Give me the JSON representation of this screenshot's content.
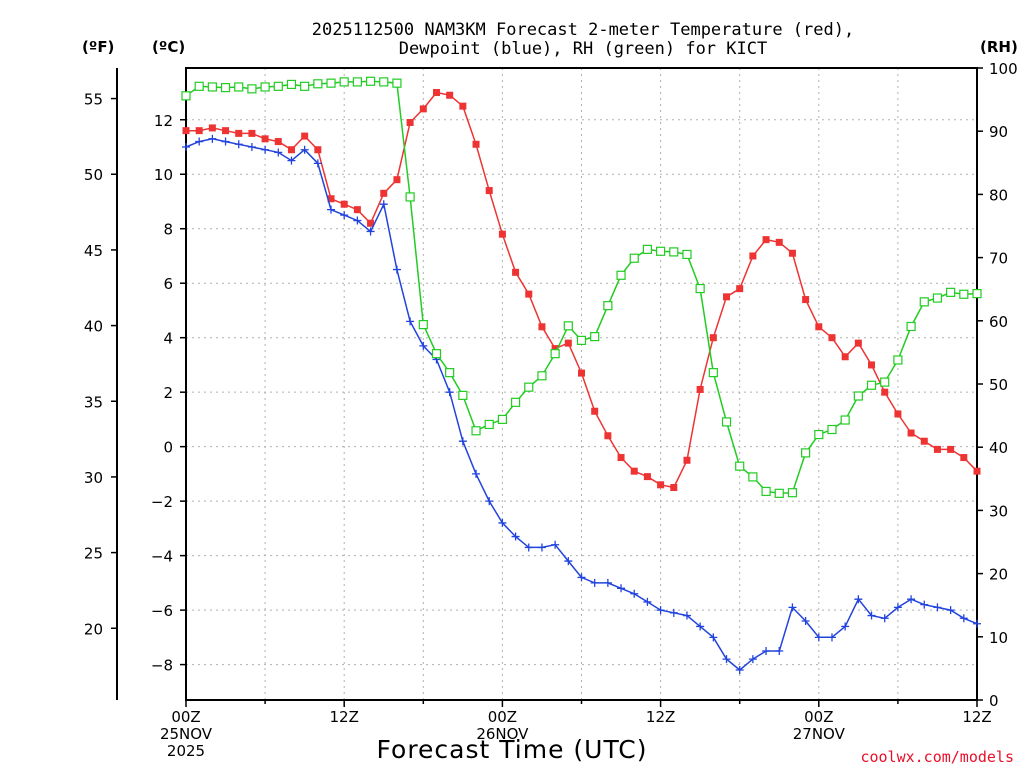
{
  "chart_data": {
    "type": "line",
    "title_line1": "2025112500 NAM3KM Forecast 2-meter Temperature (red),",
    "title_line2": "Dewpoint (blue), RH (green) for KICT",
    "xlabel": "Forecast Time (UTC)",
    "credit": "coolwx.com/models",
    "units": {
      "fahrenheit": "(ºF)",
      "celsius": "(ºC)",
      "rh": "(RH)"
    },
    "x_range_hours": [
      0,
      60
    ],
    "x_ticks": [
      {
        "hour": 0,
        "lines": [
          "00Z",
          "25NOV",
          "2025"
        ]
      },
      {
        "hour": 12,
        "lines": [
          "12Z"
        ]
      },
      {
        "hour": 24,
        "lines": [
          "00Z",
          "26NOV"
        ]
      },
      {
        "hour": 36,
        "lines": [
          "12Z"
        ]
      },
      {
        "hour": 48,
        "lines": [
          "00Z",
          "27NOV"
        ]
      },
      {
        "hour": 60,
        "lines": [
          "12Z"
        ]
      }
    ],
    "celsius_axis": {
      "range": [
        -9.3,
        13.9
      ],
      "ticks": [
        "12",
        "10",
        "8",
        "6",
        "4",
        "2",
        "0",
        "−2",
        "−4",
        "−6",
        "−8"
      ],
      "tick_values": [
        12,
        10,
        8,
        6,
        4,
        2,
        0,
        -2,
        -4,
        -6,
        -8
      ]
    },
    "fahrenheit_axis": {
      "ticks": [
        "55",
        "50",
        "45",
        "40",
        "35",
        "30",
        "25",
        "20"
      ],
      "tick_values": [
        55,
        50,
        45,
        40,
        35,
        30,
        25,
        20
      ]
    },
    "rh_axis": {
      "range": [
        0,
        100
      ],
      "ticks": [
        "100",
        "90",
        "80",
        "70",
        "60",
        "50",
        "40",
        "30",
        "20",
        "10",
        "0"
      ],
      "tick_values": [
        100,
        90,
        80,
        70,
        60,
        50,
        40,
        30,
        20,
        10,
        0
      ]
    },
    "series": [
      {
        "name": "2-meter Temperature",
        "unit": "C",
        "color": "#ee3333",
        "marker": "filled-square",
        "x": [
          0,
          1,
          2,
          3,
          4,
          5,
          6,
          7,
          8,
          9,
          10,
          11,
          12,
          13,
          14,
          15,
          16,
          17,
          18,
          19,
          20,
          21,
          22,
          23,
          24,
          25,
          26,
          27,
          28,
          29,
          30,
          31,
          32,
          33,
          34,
          35,
          36,
          37,
          38,
          39,
          40,
          41,
          42,
          43,
          44,
          45,
          46,
          47,
          48,
          49,
          50,
          51,
          52,
          53,
          54,
          55,
          56,
          57,
          58,
          59,
          60
        ],
        "values": [
          11.6,
          11.6,
          11.7,
          11.6,
          11.5,
          11.5,
          11.3,
          11.2,
          10.9,
          11.4,
          10.9,
          9.1,
          8.9,
          8.7,
          8.2,
          9.3,
          9.8,
          11.9,
          12.4,
          13.0,
          12.9,
          12.5,
          11.1,
          9.4,
          7.8,
          6.4,
          5.6,
          4.4,
          3.6,
          3.8,
          2.7,
          1.3,
          0.4,
          -0.4,
          -0.9,
          -1.1,
          -1.4,
          -1.5,
          -0.5,
          2.1,
          4.0,
          5.5,
          5.8,
          7.0,
          7.6,
          7.5,
          7.1,
          5.4,
          4.4,
          4.0,
          3.3,
          3.8,
          3.0,
          2.0,
          1.2,
          0.5,
          0.2,
          -0.1,
          -0.1,
          -0.4,
          -0.9
        ]
      },
      {
        "name": "Dewpoint",
        "unit": "C",
        "color": "#2244dd",
        "marker": "plus",
        "x": [
          0,
          1,
          2,
          3,
          4,
          5,
          6,
          7,
          8,
          9,
          10,
          11,
          12,
          13,
          14,
          15,
          16,
          17,
          18,
          19,
          20,
          21,
          22,
          23,
          24,
          25,
          26,
          27,
          28,
          29,
          30,
          31,
          32,
          33,
          34,
          35,
          36,
          37,
          38,
          39,
          40,
          41,
          42,
          43,
          44,
          45,
          46,
          47,
          48,
          49,
          50,
          51,
          52,
          53,
          54,
          55,
          56,
          57,
          58,
          59,
          60
        ],
        "values": [
          11.0,
          11.2,
          11.3,
          11.2,
          11.1,
          11.0,
          10.9,
          10.8,
          10.5,
          10.9,
          10.4,
          8.7,
          8.5,
          8.3,
          7.9,
          8.9,
          6.5,
          4.6,
          3.7,
          3.2,
          2.0,
          0.2,
          -1.0,
          -2.0,
          -2.8,
          -3.3,
          -3.7,
          -3.7,
          -3.6,
          -4.2,
          -4.8,
          -5.0,
          -5.0,
          -5.2,
          -5.4,
          -5.7,
          -6.0,
          -6.1,
          -6.2,
          -6.6,
          -7.0,
          -7.8,
          -8.2,
          -7.8,
          -7.5,
          -7.5,
          -5.9,
          -6.4,
          -7.0,
          -7.0,
          -6.6,
          -5.6,
          -6.2,
          -6.3,
          -5.9,
          -5.6,
          -5.8,
          -5.9,
          -6.0,
          -6.3,
          -6.5
        ]
      },
      {
        "name": "RH",
        "unit": "%",
        "color": "#22cc22",
        "marker": "open-square",
        "x": [
          0,
          1,
          2,
          3,
          4,
          5,
          6,
          7,
          8,
          9,
          10,
          11,
          12,
          13,
          14,
          15,
          16,
          17,
          18,
          19,
          20,
          21,
          22,
          23,
          24,
          25,
          26,
          27,
          28,
          29,
          30,
          31,
          32,
          33,
          34,
          35,
          36,
          37,
          38,
          39,
          40,
          41,
          42,
          43,
          44,
          45,
          46,
          47,
          48,
          49,
          50,
          51,
          52,
          53,
          54,
          55,
          56,
          57,
          58,
          59,
          60
        ],
        "values": [
          95.6,
          97.1,
          97.0,
          96.9,
          97.0,
          96.7,
          97.0,
          97.1,
          97.4,
          97.1,
          97.5,
          97.6,
          97.8,
          97.8,
          97.9,
          97.8,
          97.6,
          79.6,
          59.4,
          54.8,
          51.8,
          48.2,
          42.6,
          43.6,
          44.4,
          47.1,
          49.5,
          51.3,
          54.8,
          59.2,
          56.9,
          57.5,
          62.4,
          67.2,
          69.9,
          71.3,
          71.0,
          70.9,
          70.5,
          65.1,
          51.8,
          44.0,
          37.0,
          35.3,
          33.0,
          32.7,
          32.8,
          39.1,
          42.0,
          42.8,
          44.3,
          48.1,
          49.8,
          50.3,
          53.8,
          59.1,
          63.0,
          63.6,
          64.5,
          64.2,
          64.3
        ]
      }
    ]
  }
}
